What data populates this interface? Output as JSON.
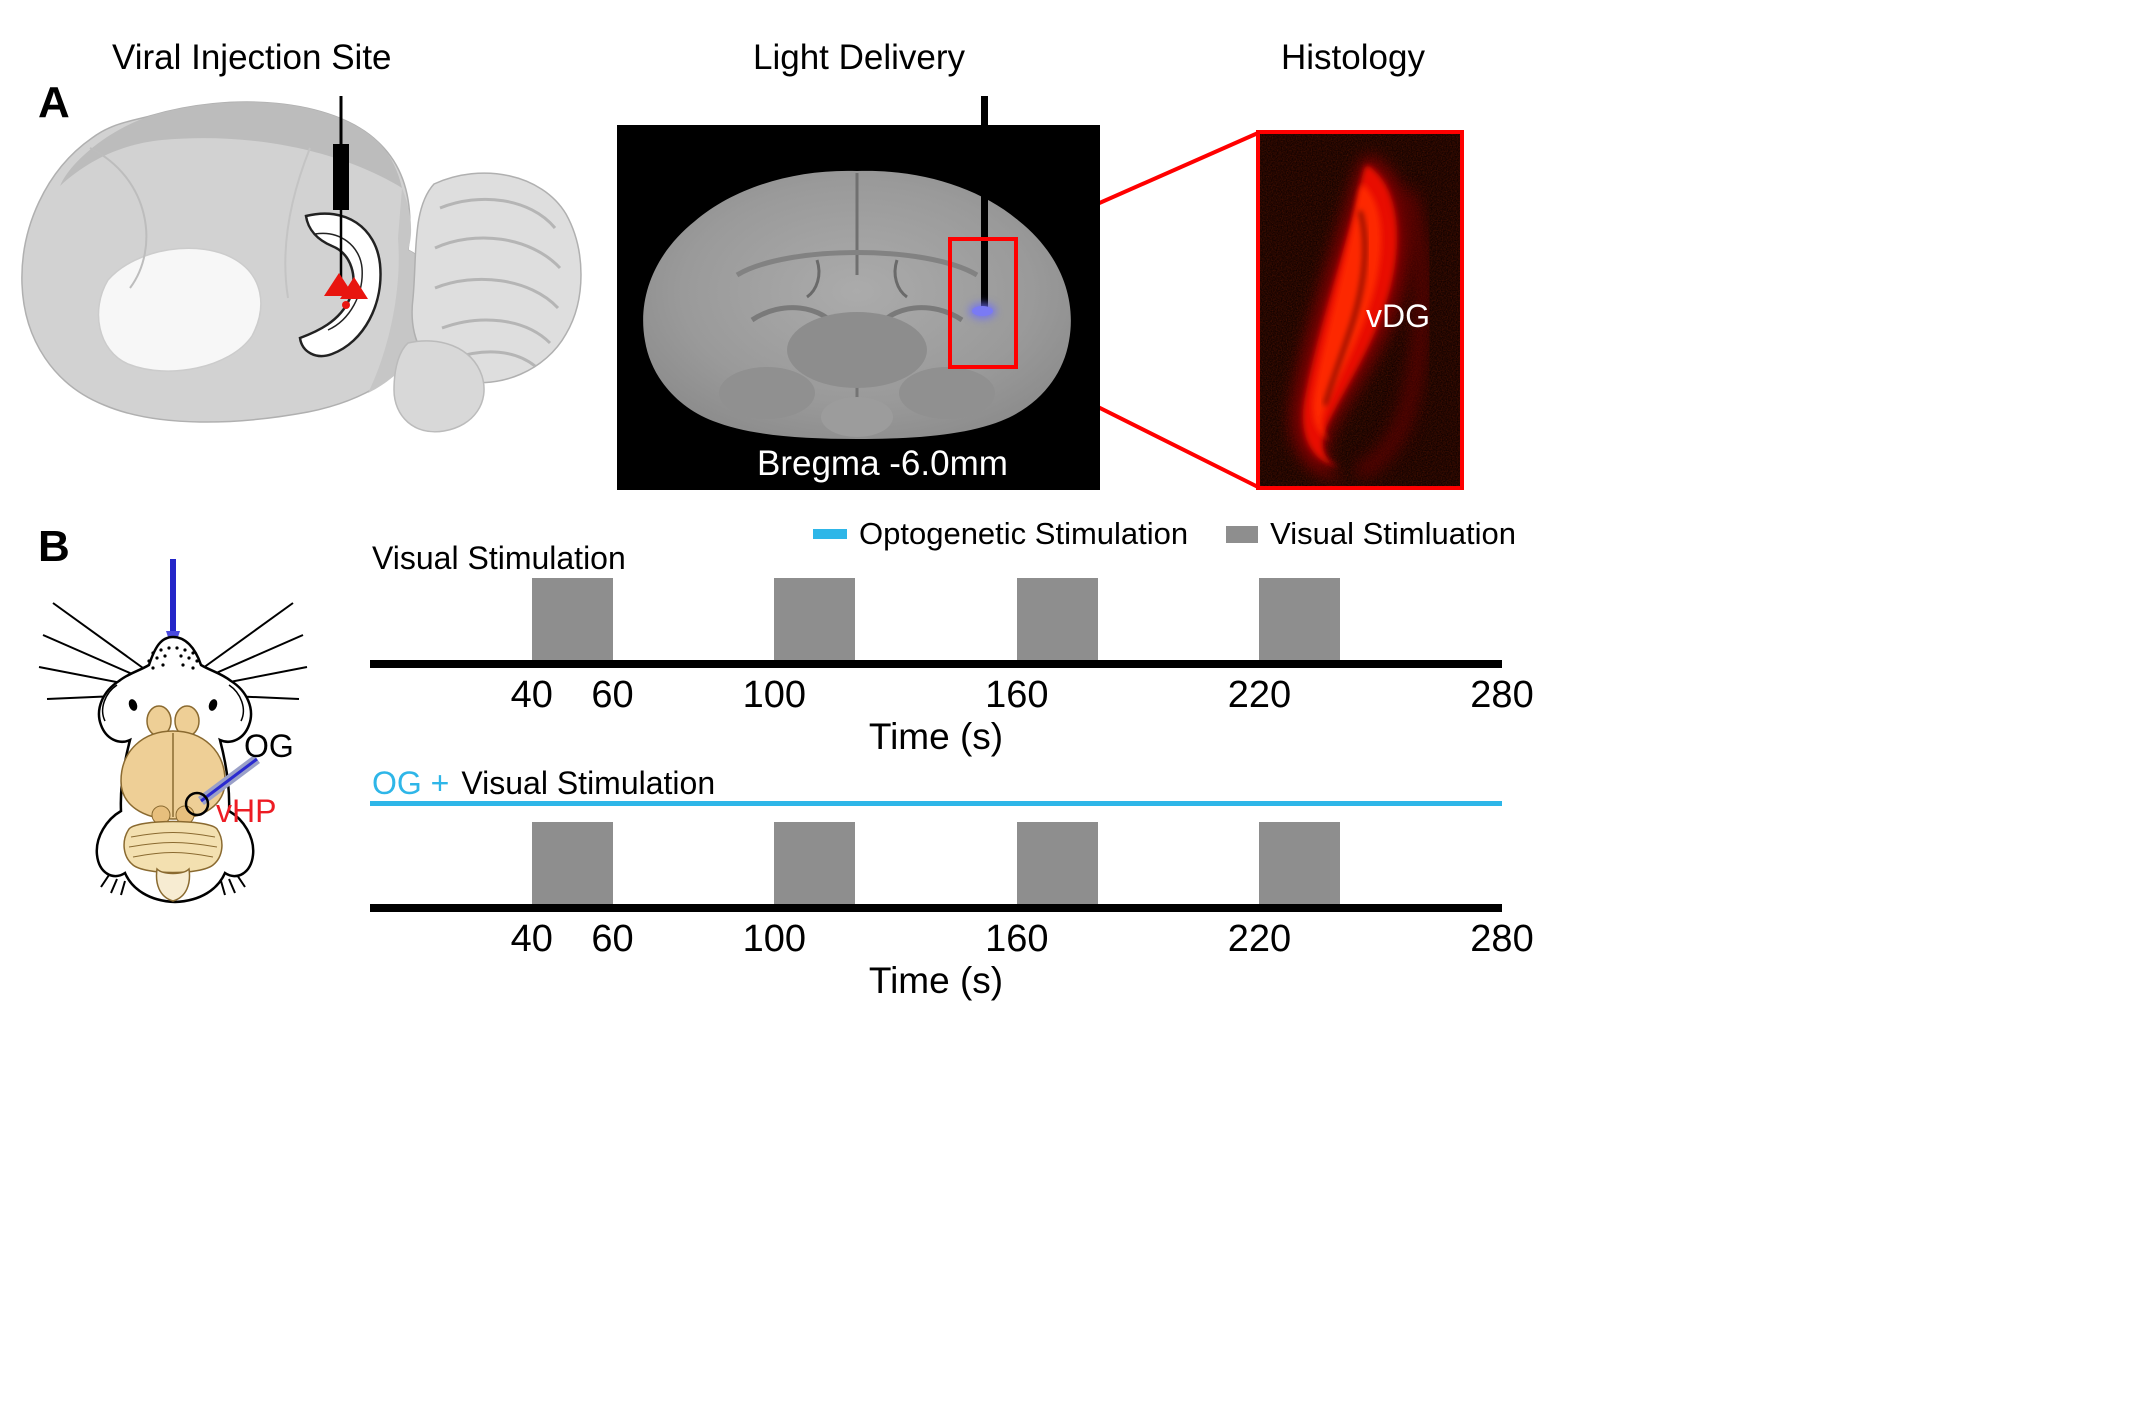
{
  "colors": {
    "accent_red": "#ff0000",
    "optogenetic_cyan": "#2eb6e8",
    "stim_gray": "#8e8e8e",
    "fiber_blue": "#2326c8",
    "vhp_red": "#ed1c24"
  },
  "panel_a": {
    "label": "A",
    "viral_injection": {
      "title": "Viral Injection Site"
    },
    "light_delivery": {
      "title": "Light Delivery",
      "caption": "Bregma -6.0mm"
    },
    "histology": {
      "title": "Histology",
      "region_label": "vDG"
    }
  },
  "panel_b": {
    "label": "B",
    "mouse": {
      "og_label": "OG",
      "vhp_label": "vHP"
    },
    "legend": {
      "optogenetic": {
        "label": "Optogenetic Stimulation"
      },
      "visual": {
        "label": "Visual Stimluation"
      }
    },
    "timeline_visual": {
      "title": "Visual Stimulation",
      "xlabel": "Time (s)",
      "xmax": 280,
      "ticks": [
        40,
        60,
        100,
        160,
        220,
        280
      ],
      "bars": [
        [
          40,
          60
        ],
        [
          100,
          120
        ],
        [
          160,
          180
        ],
        [
          220,
          240
        ]
      ]
    },
    "timeline_og_visual": {
      "title_og": "OG +",
      "title_rest": "Visual Stimulation",
      "xlabel": "Time (s)",
      "xmax": 280,
      "ticks": [
        40,
        60,
        100,
        160,
        220,
        280
      ],
      "bars": [
        [
          40,
          60
        ],
        [
          100,
          120
        ],
        [
          160,
          180
        ],
        [
          220,
          240
        ]
      ]
    }
  }
}
